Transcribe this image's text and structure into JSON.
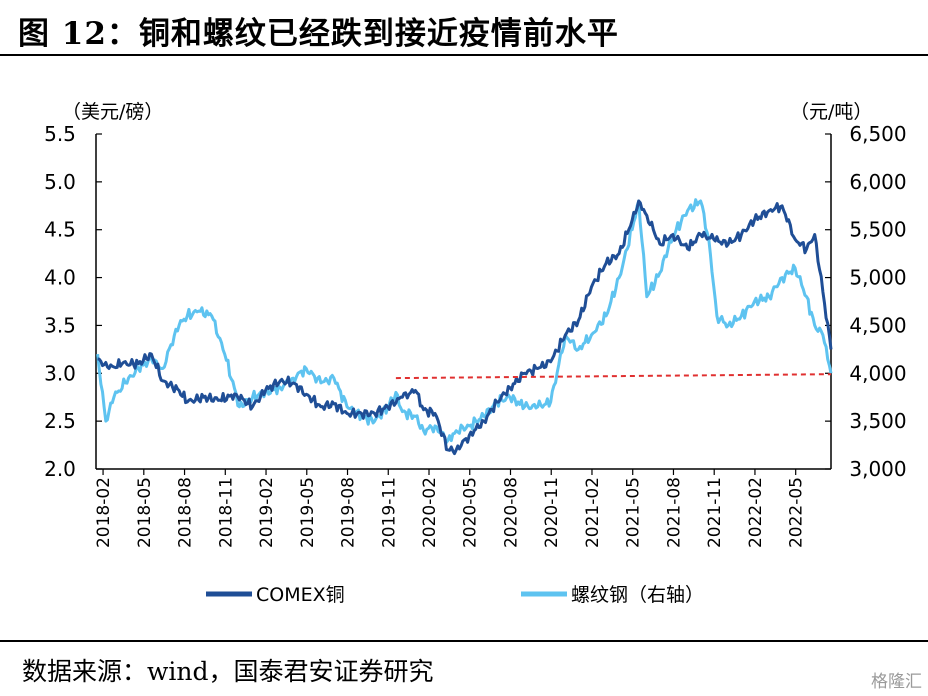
{
  "title": "图 12：铜和螺纹已经跌到接近疫情前水平",
  "source": "数据来源：wind，国泰君安证券研究",
  "watermark": "格隆汇",
  "chart_data": {
    "type": "line",
    "left_axis": {
      "unit": "（美元/磅）",
      "ylim": [
        2.0,
        5.5
      ],
      "ticks": [
        "2.0",
        "2.5",
        "3.0",
        "3.5",
        "4.0",
        "4.5",
        "5.0",
        "5.5"
      ]
    },
    "right_axis": {
      "unit": "（元/吨）",
      "ylim": [
        3000,
        6500
      ],
      "ticks": [
        "3,000",
        "3,500",
        "4,000",
        "4,500",
        "5,000",
        "5,500",
        "6,000",
        "6,500"
      ]
    },
    "x_ticks": [
      "2018-02",
      "2018-05",
      "2018-08",
      "2018-11",
      "2019-02",
      "2019-05",
      "2019-08",
      "2019-11",
      "2020-02",
      "2020-05",
      "2020-08",
      "2020-11",
      "2021-02",
      "2021-05",
      "2021-08",
      "2021-11",
      "2022-02",
      "2022-05"
    ],
    "x_range": [
      2018.04,
      2022.55
    ],
    "series": [
      {
        "name": "COMEX铜",
        "axis": "left",
        "color": "#1f4e96",
        "points": [
          [
            2018.05,
            3.15
          ],
          [
            2018.12,
            3.05
          ],
          [
            2018.2,
            3.1
          ],
          [
            2018.3,
            3.1
          ],
          [
            2018.38,
            3.2
          ],
          [
            2018.45,
            2.92
          ],
          [
            2018.55,
            2.82
          ],
          [
            2018.6,
            2.7
          ],
          [
            2018.7,
            2.75
          ],
          [
            2018.8,
            2.72
          ],
          [
            2018.9,
            2.78
          ],
          [
            2019.0,
            2.65
          ],
          [
            2019.08,
            2.82
          ],
          [
            2019.17,
            2.92
          ],
          [
            2019.25,
            2.9
          ],
          [
            2019.33,
            2.78
          ],
          [
            2019.42,
            2.65
          ],
          [
            2019.5,
            2.68
          ],
          [
            2019.58,
            2.58
          ],
          [
            2019.67,
            2.58
          ],
          [
            2019.75,
            2.58
          ],
          [
            2019.83,
            2.65
          ],
          [
            2019.92,
            2.75
          ],
          [
            2020.0,
            2.82
          ],
          [
            2020.05,
            2.62
          ],
          [
            2020.12,
            2.58
          ],
          [
            2020.2,
            2.2
          ],
          [
            2020.25,
            2.2
          ],
          [
            2020.33,
            2.35
          ],
          [
            2020.42,
            2.5
          ],
          [
            2020.5,
            2.7
          ],
          [
            2020.58,
            2.85
          ],
          [
            2020.67,
            3.0
          ],
          [
            2020.75,
            3.05
          ],
          [
            2020.83,
            3.12
          ],
          [
            2020.92,
            3.4
          ],
          [
            2021.0,
            3.55
          ],
          [
            2021.08,
            3.9
          ],
          [
            2021.17,
            4.15
          ],
          [
            2021.25,
            4.25
          ],
          [
            2021.33,
            4.6
          ],
          [
            2021.37,
            4.8
          ],
          [
            2021.42,
            4.65
          ],
          [
            2021.5,
            4.35
          ],
          [
            2021.58,
            4.45
          ],
          [
            2021.67,
            4.3
          ],
          [
            2021.75,
            4.45
          ],
          [
            2021.83,
            4.4
          ],
          [
            2021.92,
            4.35
          ],
          [
            2022.0,
            4.45
          ],
          [
            2022.08,
            4.6
          ],
          [
            2022.17,
            4.7
          ],
          [
            2022.25,
            4.75
          ],
          [
            2022.33,
            4.4
          ],
          [
            2022.4,
            4.3
          ],
          [
            2022.45,
            4.45
          ],
          [
            2022.5,
            3.85
          ],
          [
            2022.55,
            3.25
          ]
        ]
      },
      {
        "name": "螺纹钢（右轴）",
        "axis": "right",
        "color": "#5ec3f0",
        "points": [
          [
            2018.05,
            4200
          ],
          [
            2018.1,
            3500
          ],
          [
            2018.15,
            3750
          ],
          [
            2018.22,
            3900
          ],
          [
            2018.3,
            4050
          ],
          [
            2018.38,
            4150
          ],
          [
            2018.45,
            4050
          ],
          [
            2018.5,
            4300
          ],
          [
            2018.55,
            4500
          ],
          [
            2018.6,
            4600
          ],
          [
            2018.67,
            4650
          ],
          [
            2018.75,
            4600
          ],
          [
            2018.83,
            4200
          ],
          [
            2018.92,
            3650
          ],
          [
            2019.0,
            3750
          ],
          [
            2019.08,
            3800
          ],
          [
            2019.17,
            3850
          ],
          [
            2019.25,
            3950
          ],
          [
            2019.33,
            4050
          ],
          [
            2019.42,
            3900
          ],
          [
            2019.5,
            3950
          ],
          [
            2019.58,
            3650
          ],
          [
            2019.67,
            3550
          ],
          [
            2019.75,
            3500
          ],
          [
            2019.83,
            3650
          ],
          [
            2019.88,
            3800
          ],
          [
            2019.92,
            3600
          ],
          [
            2020.0,
            3550
          ],
          [
            2020.05,
            3400
          ],
          [
            2020.12,
            3450
          ],
          [
            2020.2,
            3300
          ],
          [
            2020.25,
            3400
          ],
          [
            2020.33,
            3450
          ],
          [
            2020.42,
            3550
          ],
          [
            2020.5,
            3700
          ],
          [
            2020.58,
            3750
          ],
          [
            2020.67,
            3650
          ],
          [
            2020.75,
            3650
          ],
          [
            2020.83,
            3700
          ],
          [
            2020.92,
            4400
          ],
          [
            2021.0,
            4250
          ],
          [
            2021.08,
            4400
          ],
          [
            2021.17,
            4600
          ],
          [
            2021.25,
            5000
          ],
          [
            2021.3,
            5300
          ],
          [
            2021.37,
            5800
          ],
          [
            2021.42,
            4800
          ],
          [
            2021.5,
            5050
          ],
          [
            2021.55,
            5300
          ],
          [
            2021.6,
            5500
          ],
          [
            2021.67,
            5700
          ],
          [
            2021.75,
            5800
          ],
          [
            2021.8,
            5400
          ],
          [
            2021.85,
            4600
          ],
          [
            2021.92,
            4500
          ],
          [
            2022.0,
            4600
          ],
          [
            2022.08,
            4750
          ],
          [
            2022.17,
            4800
          ],
          [
            2022.25,
            5000
          ],
          [
            2022.33,
            5100
          ],
          [
            2022.4,
            4800
          ],
          [
            2022.45,
            4500
          ],
          [
            2022.5,
            4400
          ],
          [
            2022.55,
            4000
          ]
        ]
      },
      {
        "name": "",
        "axis": "right",
        "color": "#e03030",
        "style": "dashed",
        "points": [
          [
            2019.88,
            3950
          ],
          [
            2022.55,
            3990
          ]
        ]
      }
    ],
    "legend": [
      {
        "label": "COMEX铜",
        "color": "#1f4e96"
      },
      {
        "label": "螺纹钢（右轴）",
        "color": "#5ec3f0"
      }
    ],
    "legend_position": "bottom"
  }
}
